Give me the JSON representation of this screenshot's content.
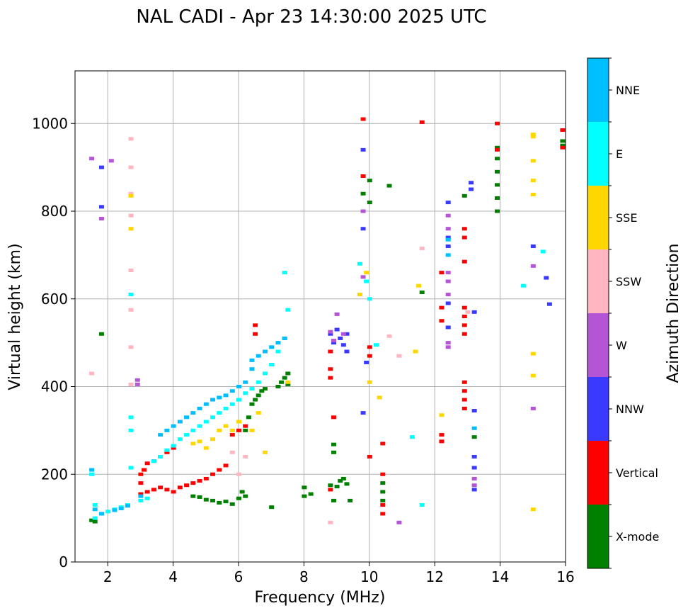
{
  "chart_data": {
    "type": "scatter",
    "title": "NAL CADI - Apr 23 14:30:00 2025 UTC",
    "xlabel": "Frequency (MHz)",
    "ylabel": "Virtual height (km)",
    "xlim": [
      1,
      16
    ],
    "ylim": [
      0,
      1120
    ],
    "xticks": [
      2,
      4,
      6,
      8,
      10,
      12,
      14,
      16
    ],
    "yticks": [
      0,
      200,
      400,
      600,
      800,
      1000
    ],
    "grid": true,
    "colorbar": {
      "label": "Azimuth Direction",
      "categories": [
        {
          "name": "X-mode",
          "color": "#008000"
        },
        {
          "name": "Vertical",
          "color": "#ff0000"
        },
        {
          "name": "NNW",
          "color": "#3a3aff"
        },
        {
          "name": "W",
          "color": "#b455d6"
        },
        {
          "name": "SSW",
          "color": "#ffb6c1"
        },
        {
          "name": "SSE",
          "color": "#ffd700"
        },
        {
          "name": "E",
          "color": "#00ffff"
        },
        {
          "name": "NNE",
          "color": "#00bfff"
        }
      ]
    },
    "series": [
      {
        "name": "X-mode",
        "points": [
          [
            1.5,
            95
          ],
          [
            1.6,
            92
          ],
          [
            1.8,
            520
          ],
          [
            4.6,
            150
          ],
          [
            4.8,
            148
          ],
          [
            5.0,
            142
          ],
          [
            5.2,
            140
          ],
          [
            5.4,
            135
          ],
          [
            5.6,
            138
          ],
          [
            5.8,
            132
          ],
          [
            6.0,
            145
          ],
          [
            6.1,
            160
          ],
          [
            6.2,
            150
          ],
          [
            6.2,
            300
          ],
          [
            6.3,
            330
          ],
          [
            6.4,
            360
          ],
          [
            6.5,
            370
          ],
          [
            6.6,
            380
          ],
          [
            6.7,
            390
          ],
          [
            6.8,
            395
          ],
          [
            7.0,
            125
          ],
          [
            7.2,
            400
          ],
          [
            7.3,
            410
          ],
          [
            7.4,
            420
          ],
          [
            7.5,
            430
          ],
          [
            7.5,
            405
          ],
          [
            8.0,
            150
          ],
          [
            8.0,
            170
          ],
          [
            8.2,
            155
          ],
          [
            8.8,
            175
          ],
          [
            8.9,
            268
          ],
          [
            8.9,
            250
          ],
          [
            8.9,
            140
          ],
          [
            9.0,
            172
          ],
          [
            9.1,
            185
          ],
          [
            9.2,
            190
          ],
          [
            9.3,
            178
          ],
          [
            9.4,
            140
          ],
          [
            9.8,
            840
          ],
          [
            10.0,
            870
          ],
          [
            10.0,
            820
          ],
          [
            10.4,
            180
          ],
          [
            10.4,
            160
          ],
          [
            10.4,
            140
          ],
          [
            10.6,
            858
          ],
          [
            11.6,
            615
          ],
          [
            12.9,
            835
          ],
          [
            13.2,
            285
          ],
          [
            13.9,
            800
          ],
          [
            13.9,
            830
          ],
          [
            13.9,
            860
          ],
          [
            13.9,
            890
          ],
          [
            13.9,
            920
          ],
          [
            13.9,
            945
          ],
          [
            15.9,
            950
          ],
          [
            15.9,
            960
          ]
        ]
      },
      {
        "name": "Vertical",
        "points": [
          [
            3.0,
            155
          ],
          [
            3.0,
            180
          ],
          [
            3.0,
            200
          ],
          [
            3.1,
            210
          ],
          [
            3.2,
            160
          ],
          [
            3.2,
            225
          ],
          [
            3.4,
            165
          ],
          [
            3.4,
            230
          ],
          [
            3.6,
            170
          ],
          [
            3.6,
            240
          ],
          [
            3.8,
            165
          ],
          [
            3.8,
            250
          ],
          [
            4.0,
            160
          ],
          [
            4.0,
            260
          ],
          [
            4.2,
            170
          ],
          [
            4.4,
            175
          ],
          [
            4.6,
            180
          ],
          [
            4.8,
            185
          ],
          [
            5.0,
            190
          ],
          [
            5.2,
            200
          ],
          [
            5.4,
            210
          ],
          [
            5.6,
            220
          ],
          [
            5.8,
            290
          ],
          [
            6.0,
            300
          ],
          [
            6.2,
            310
          ],
          [
            6.5,
            540
          ],
          [
            6.5,
            520
          ],
          [
            8.8,
            420
          ],
          [
            8.8,
            440
          ],
          [
            8.8,
            480
          ],
          [
            8.9,
            330
          ],
          [
            8.8,
            165
          ],
          [
            9.8,
            1010
          ],
          [
            9.8,
            880
          ],
          [
            10.0,
            490
          ],
          [
            10.0,
            470
          ],
          [
            10.0,
            240
          ],
          [
            10.4,
            270
          ],
          [
            10.4,
            200
          ],
          [
            10.4,
            130
          ],
          [
            10.4,
            110
          ],
          [
            11.6,
            1003
          ],
          [
            12.2,
            660
          ],
          [
            12.2,
            580
          ],
          [
            12.2,
            550
          ],
          [
            12.2,
            290
          ],
          [
            12.2,
            275
          ],
          [
            12.9,
            760
          ],
          [
            12.9,
            740
          ],
          [
            12.9,
            685
          ],
          [
            12.9,
            580
          ],
          [
            12.9,
            560
          ],
          [
            12.9,
            540
          ],
          [
            12.9,
            520
          ],
          [
            12.9,
            410
          ],
          [
            12.9,
            390
          ],
          [
            12.9,
            370
          ],
          [
            12.9,
            350
          ],
          [
            13.9,
            1000
          ],
          [
            13.9,
            940
          ],
          [
            15.9,
            985
          ],
          [
            15.9,
            945
          ]
        ]
      },
      {
        "name": "NNW",
        "points": [
          [
            1.8,
            810
          ],
          [
            1.8,
            900
          ],
          [
            8.8,
            520
          ],
          [
            8.9,
            500
          ],
          [
            9.0,
            530
          ],
          [
            9.1,
            510
          ],
          [
            9.2,
            495
          ],
          [
            9.3,
            520
          ],
          [
            9.3,
            480
          ],
          [
            9.8,
            940
          ],
          [
            9.8,
            760
          ],
          [
            9.8,
            340
          ],
          [
            9.9,
            455
          ],
          [
            12.4,
            820
          ],
          [
            12.4,
            740
          ],
          [
            12.4,
            720
          ],
          [
            12.4,
            590
          ],
          [
            12.4,
            535
          ],
          [
            13.1,
            865
          ],
          [
            13.1,
            850
          ],
          [
            13.2,
            570
          ],
          [
            13.2,
            345
          ],
          [
            13.2,
            240
          ],
          [
            13.2,
            215
          ],
          [
            13.2,
            165
          ],
          [
            15.0,
            720
          ],
          [
            15.4,
            648
          ],
          [
            15.5,
            588
          ]
        ]
      },
      {
        "name": "W",
        "points": [
          [
            1.5,
            920
          ],
          [
            1.8,
            783
          ],
          [
            2.1,
            915
          ],
          [
            2.9,
            415
          ],
          [
            2.9,
            405
          ],
          [
            8.8,
            525
          ],
          [
            8.9,
            505
          ],
          [
            9.0,
            565
          ],
          [
            9.2,
            520
          ],
          [
            9.8,
            800
          ],
          [
            9.8,
            650
          ],
          [
            10.9,
            90
          ],
          [
            12.4,
            790
          ],
          [
            12.4,
            760
          ],
          [
            12.4,
            660
          ],
          [
            12.4,
            640
          ],
          [
            12.4,
            610
          ],
          [
            12.4,
            500
          ],
          [
            12.4,
            490
          ],
          [
            13.2,
            190
          ],
          [
            13.2,
            175
          ],
          [
            15.0,
            675
          ],
          [
            15.0,
            350
          ]
        ]
      },
      {
        "name": "SSW",
        "points": [
          [
            1.5,
            430
          ],
          [
            2.7,
            965
          ],
          [
            2.7,
            900
          ],
          [
            2.7,
            840
          ],
          [
            2.7,
            790
          ],
          [
            2.7,
            665
          ],
          [
            2.7,
            575
          ],
          [
            2.7,
            490
          ],
          [
            2.7,
            405
          ],
          [
            5.8,
            250
          ],
          [
            6.0,
            200
          ],
          [
            6.2,
            240
          ],
          [
            8.8,
            90
          ],
          [
            10.6,
            515
          ],
          [
            10.9,
            470
          ],
          [
            11.6,
            715
          ],
          [
            13.0,
            570
          ]
        ]
      },
      {
        "name": "SSE",
        "points": [
          [
            2.7,
            760
          ],
          [
            2.7,
            835
          ],
          [
            4.6,
            270
          ],
          [
            4.8,
            275
          ],
          [
            5.0,
            260
          ],
          [
            5.2,
            280
          ],
          [
            5.4,
            300
          ],
          [
            5.6,
            310
          ],
          [
            5.8,
            300
          ],
          [
            6.0,
            320
          ],
          [
            6.4,
            300
          ],
          [
            6.6,
            340
          ],
          [
            6.8,
            250
          ],
          [
            7.5,
            410
          ],
          [
            9.7,
            610
          ],
          [
            9.9,
            660
          ],
          [
            10.0,
            410
          ],
          [
            10.3,
            375
          ],
          [
            11.4,
            480
          ],
          [
            11.5,
            630
          ],
          [
            12.2,
            335
          ],
          [
            15.0,
            975
          ],
          [
            15.0,
            970
          ],
          [
            15.0,
            915
          ],
          [
            15.0,
            870
          ],
          [
            15.0,
            838
          ],
          [
            15.0,
            475
          ],
          [
            15.0,
            425
          ],
          [
            15.0,
            120
          ]
        ]
      },
      {
        "name": "E",
        "points": [
          [
            1.5,
            200
          ],
          [
            1.6,
            130
          ],
          [
            1.6,
            100
          ],
          [
            1.8,
            110
          ],
          [
            2.0,
            115
          ],
          [
            2.2,
            120
          ],
          [
            2.4,
            125
          ],
          [
            2.6,
            130
          ],
          [
            2.7,
            215
          ],
          [
            2.7,
            300
          ],
          [
            2.7,
            330
          ],
          [
            2.7,
            610
          ],
          [
            3.0,
            140
          ],
          [
            3.2,
            145
          ],
          [
            3.4,
            230
          ],
          [
            3.6,
            240
          ],
          [
            3.8,
            255
          ],
          [
            4.0,
            265
          ],
          [
            4.2,
            280
          ],
          [
            4.4,
            290
          ],
          [
            4.6,
            300
          ],
          [
            4.8,
            310
          ],
          [
            5.0,
            320
          ],
          [
            5.2,
            330
          ],
          [
            5.4,
            340
          ],
          [
            5.6,
            350
          ],
          [
            5.8,
            360
          ],
          [
            6.0,
            370
          ],
          [
            6.2,
            385
          ],
          [
            6.4,
            395
          ],
          [
            6.6,
            410
          ],
          [
            6.8,
            430
          ],
          [
            7.0,
            450
          ],
          [
            7.2,
            480
          ],
          [
            7.4,
            510
          ],
          [
            7.4,
            660
          ],
          [
            7.5,
            575
          ],
          [
            9.7,
            680
          ],
          [
            9.9,
            640
          ],
          [
            10.0,
            600
          ],
          [
            10.2,
            495
          ],
          [
            11.3,
            285
          ],
          [
            11.6,
            130
          ],
          [
            14.7,
            630
          ],
          [
            15.3,
            708
          ]
        ]
      },
      {
        "name": "NNE",
        "points": [
          [
            1.5,
            210
          ],
          [
            1.6,
            120
          ],
          [
            1.8,
            110
          ],
          [
            2.2,
            118
          ],
          [
            2.4,
            122
          ],
          [
            2.6,
            128
          ],
          [
            3.0,
            150
          ],
          [
            3.6,
            290
          ],
          [
            3.8,
            300
          ],
          [
            4.0,
            310
          ],
          [
            4.2,
            320
          ],
          [
            4.4,
            330
          ],
          [
            4.6,
            340
          ],
          [
            4.8,
            350
          ],
          [
            5.0,
            360
          ],
          [
            5.2,
            370
          ],
          [
            5.4,
            375
          ],
          [
            5.6,
            380
          ],
          [
            5.8,
            390
          ],
          [
            6.0,
            400
          ],
          [
            6.2,
            410
          ],
          [
            6.4,
            440
          ],
          [
            6.4,
            460
          ],
          [
            6.6,
            470
          ],
          [
            6.8,
            480
          ],
          [
            7.0,
            490
          ],
          [
            7.2,
            500
          ],
          [
            7.4,
            510
          ],
          [
            12.4,
            735
          ],
          [
            12.4,
            700
          ],
          [
            13.2,
            305
          ]
        ]
      }
    ]
  }
}
